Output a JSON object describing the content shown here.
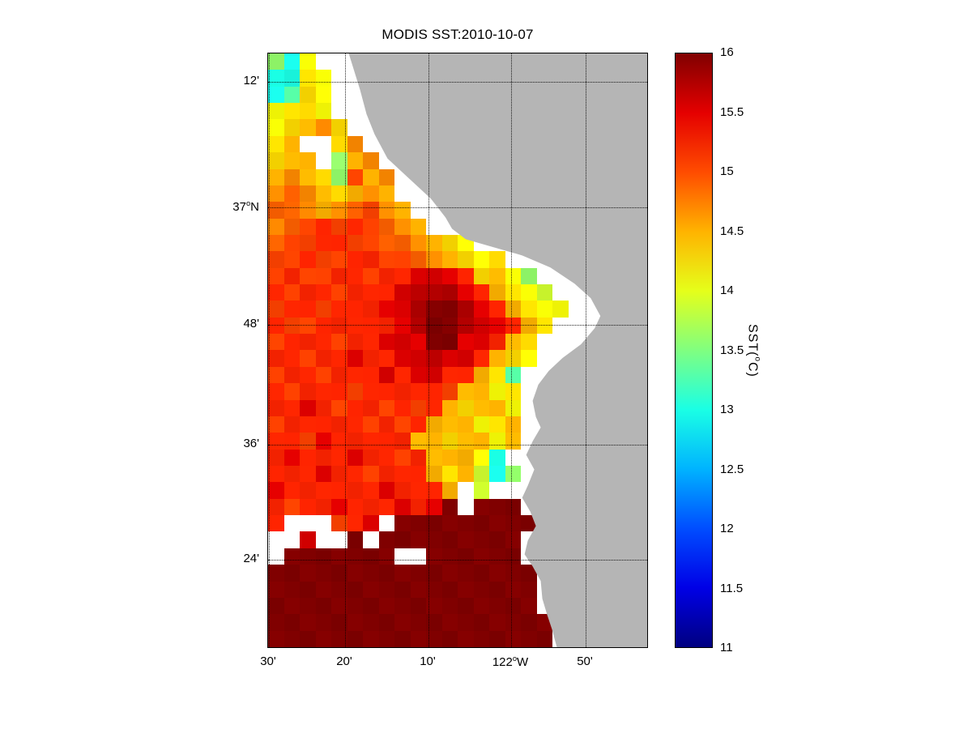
{
  "figure": {
    "title": "MODIS SST:2010-10-07",
    "background_color": "#ffffff"
  },
  "chart_data": {
    "type": "heatmap",
    "title": "MODIS SST:2010-10-07",
    "subtitle": "",
    "colormap": "jet",
    "value_range": [
      11,
      16
    ],
    "grid_on": true,
    "colorbar": {
      "position": "right",
      "ticks": [
        16,
        15.5,
        15,
        14.5,
        14,
        13.5,
        13,
        12.5,
        12,
        11.5,
        11
      ],
      "label": {
        "pre": "SST(",
        "deg": "o",
        "post": "C)"
      }
    },
    "x_axis": {
      "tick_labels": [
        "30'",
        "20'",
        "10'",
        "122°W",
        "50'"
      ],
      "ticks": [
        {
          "pre": "30'",
          "deg": "",
          "post": "",
          "pos": 1
        },
        {
          "pre": "20'",
          "deg": "",
          "post": "",
          "pos": 95
        },
        {
          "pre": "10'",
          "deg": "",
          "post": "",
          "pos": 198
        },
        {
          "pre": "122",
          "deg": "o",
          "post": "W",
          "pos": 300
        },
        {
          "pre": "50'",
          "deg": "",
          "post": "",
          "pos": 392
        }
      ]
    },
    "y_axis": {
      "tick_labels": [
        "12'",
        "37°N",
        "48'",
        "36'",
        "24'"
      ],
      "ticks": [
        {
          "pre": "12'",
          "deg": "",
          "post": "",
          "pos": 35
        },
        {
          "pre": "37",
          "deg": "o",
          "post": "N",
          "pos": 190
        },
        {
          "pre": "48'",
          "deg": "",
          "post": "",
          "pos": 335
        },
        {
          "pre": "36'",
          "deg": "",
          "post": "",
          "pos": 483
        },
        {
          "pre": "24'",
          "deg": "",
          "post": "",
          "pos": 625
        }
      ]
    },
    "land_color": "#b5b5b5",
    "no_data_color": "#ffffff",
    "grid_rows": 36,
    "grid_cols": 24,
    "value_map": {
      "e": 13.0,
      "f": 13.3,
      "g": 13.6,
      "h": 13.9,
      "i": 14.1,
      "j": 14.3,
      "k": 14.5,
      "l": 14.7,
      "m": 14.9,
      "n": 15.05,
      "o": 15.2,
      "q": 15.55,
      "r": 15.75,
      "s": 16.0
    },
    "grid_legend": ". = no data (cloud/white), L = land mask",
    "grid": [
      "gei..LLLLLLLLLLLLLLLLLLL",
      "eeji.LLLLLLLLLLLLLLLLLLL",
      "efji.LLLLLLLLLLLLLLLLLLL",
      "ijji..LLLLLLLLLLLLLLLLLL",
      "ijklj..LLLLLLLLLLLLLLLLL",
      "jk..jl.LLLLLLLLLLLLLLLLL",
      "jkk.gkl.LLLLLLLLLLLLLLLL",
      "klkjgnkl.LLLLLLLLLLLLLLL",
      "lmlkjklk..LLLLLLLLLLLLLL",
      "mmlklmnlk..LLLLLLLLLLLLL",
      "lmnononmlk..LLLLLLLLLLLL",
      "mnnoonnmmlkji.LLLLLLLLLL",
      "nnonnoonnmlkjij..LLLLLLL",
      "nonnoonooqqqojkig.LLLLLL",
      "onoonoooqrrrqokjih..LLLL",
      "noonoooqqrssrqokjii..LLL",
      "onnoooooqrssrqqokj..LLLL",
      "nooonooqqqssqqokj..LLLLL",
      "oonooqooqqrqqokji.LLLLLL",
      "noonoooqoqqookjf.LLLLLLL",
      "onooonooooonkkij.LLLLLLL",
      "ooqonoononokjkki.LLLLLLL",
      "nooooononokkkijk.LLLLLLL",
      "oonqoooookkjkkik.LLLLLLL",
      "oqoooqoonokkkie.LLLLLLLL",
      "oooqoonoookjkheg.LLLLLLL",
      "qooooooqoook.h..LLLLLLLL",
      "onooqoooqoqs.sssLLLLLLLL",
      "o...noq.sssssssssLLLLLLL",
      "..q..s.sssssssss.LLLLLLL",
      ".sssssss..ssssss.LLLLLLL",
      "sssssssssssssssssLLLLLLL",
      "sssssssssssssssssLLLLLLL",
      "sssssssssssssssss.LLLLLL",
      "ssssssssssssssssssLLLLLL",
      "ssssssssssssssssssLLLLLL"
    ]
  }
}
